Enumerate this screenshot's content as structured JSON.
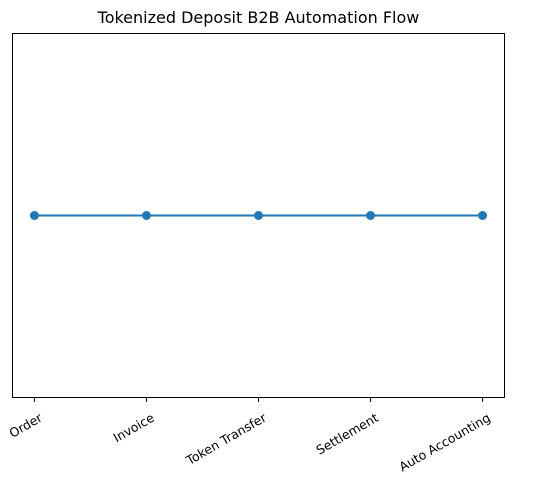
{
  "chart_data": {
    "type": "line",
    "title": "Tokenized Deposit B2B Automation Flow",
    "xlabel": "",
    "ylabel": "",
    "categories": [
      "Order",
      "Invoice",
      "Token Transfer",
      "Settlement",
      "Auto Accounting"
    ],
    "series": [
      {
        "values": [
          1,
          1,
          1,
          1,
          1
        ],
        "color": "#1f77b4",
        "marker": "circle"
      }
    ],
    "ylim": [
      0.9,
      1.1
    ],
    "yticks_visible": false,
    "grid": false,
    "xtick_rotation_deg": 30
  }
}
